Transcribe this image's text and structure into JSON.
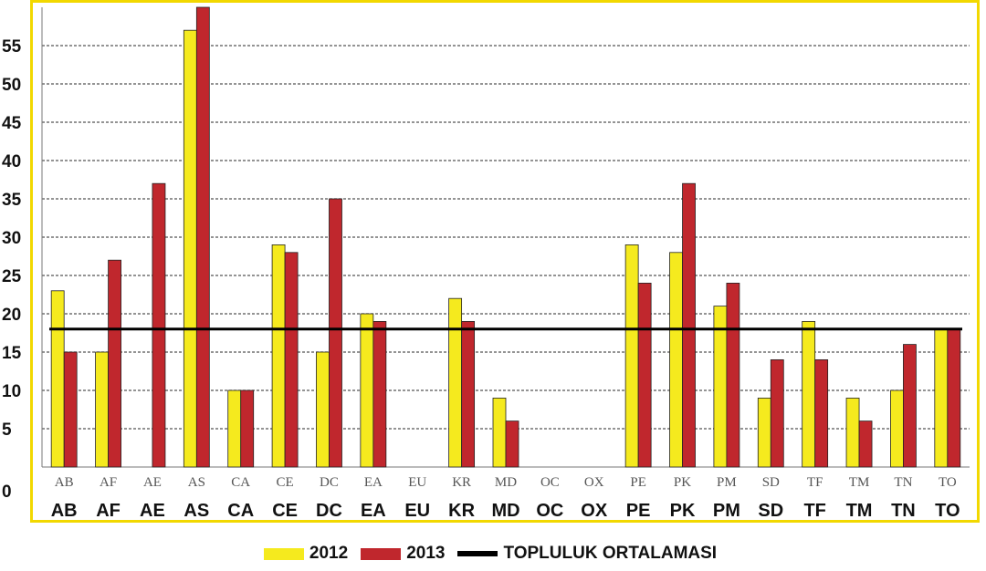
{
  "chart_data": {
    "type": "bar",
    "categories": [
      "AB",
      "AF",
      "AE",
      "AS",
      "CA",
      "CE",
      "DC",
      "EA",
      "EU",
      "KR",
      "MD",
      "OC",
      "OX",
      "PE",
      "PK",
      "PM",
      "SD",
      "TF",
      "TM",
      "TN",
      "TO"
    ],
    "series": [
      {
        "name": "2012",
        "color": "#f5ea1e",
        "values": [
          23,
          15,
          0,
          57,
          10,
          29,
          15,
          20,
          0,
          22,
          9,
          0,
          0,
          29,
          28,
          21,
          9,
          19,
          9,
          10,
          18
        ]
      },
      {
        "name": "2013",
        "color": "#c0272d",
        "values": [
          15,
          27,
          37,
          60,
          10,
          28,
          35,
          19,
          0,
          19,
          6,
          0,
          0,
          24,
          37,
          24,
          14,
          14,
          6,
          16,
          18
        ]
      }
    ],
    "average": {
      "name": "TOPLULUK ORTALAMASI",
      "value": 18,
      "color": "#000000"
    },
    "ylim": [
      0,
      60
    ],
    "yticks": [
      0,
      5,
      10,
      15,
      20,
      25,
      30,
      35,
      40,
      45,
      50,
      55
    ],
    "grid": true,
    "legend_position": "bottom-center",
    "title": "",
    "xlabel": "",
    "ylabel": ""
  },
  "legend": {
    "items": [
      {
        "label": "2012",
        "color": "#f5ea1e",
        "kind": "box"
      },
      {
        "label": "2013",
        "color": "#c0272d",
        "kind": "box"
      },
      {
        "label": "TOPLULUK ORTALAMASI",
        "color": "#000000",
        "kind": "line"
      }
    ]
  }
}
